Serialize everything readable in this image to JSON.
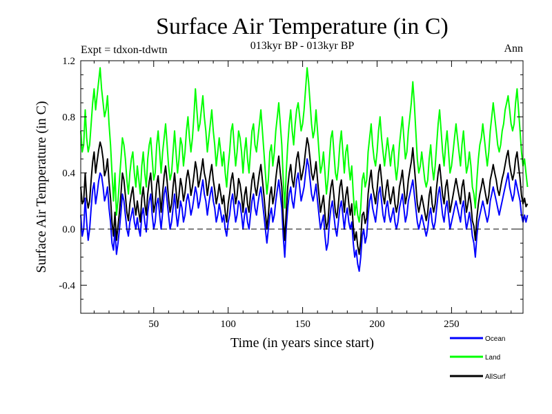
{
  "chart_data": {
    "type": "line",
    "title": "Surface Air Temperature (in C)",
    "subtitle": "013kyr BP - 013kyr BP",
    "experiment_label": "Expt = tdxon-tdwtn",
    "season_label": "Ann",
    "xlabel": "Time (in years since start)",
    "ylabel": "Surface Air Temperature (in C)",
    "xlim": [
      1,
      298
    ],
    "ylim": [
      -0.6,
      1.2
    ],
    "x_ticks": [
      50,
      100,
      150,
      200,
      250
    ],
    "y_ticks": [
      "-0.4",
      "0.0",
      "0.4",
      "0.8",
      "1.2"
    ],
    "y_tick_values": [
      -0.4,
      0.0,
      0.4,
      0.8,
      1.2
    ],
    "reference_line": 0.0,
    "legend_position": "bottom-right",
    "series": [
      {
        "name": "Ocean",
        "color": "#0000ff",
        "values": [
          0.1,
          -0.05,
          0.0,
          0.22,
          0.05,
          -0.08,
          0.0,
          0.15,
          0.28,
          0.33,
          0.18,
          0.25,
          0.34,
          0.4,
          0.38,
          0.3,
          0.2,
          0.24,
          0.3,
          0.15,
          0.05,
          -0.1,
          -0.15,
          0.0,
          -0.18,
          -0.1,
          0.0,
          0.12,
          0.25,
          0.2,
          0.1,
          0.0,
          -0.05,
          0.05,
          0.1,
          0.15,
          0.05,
          0.0,
          0.08,
          0.0,
          -0.05,
          0.1,
          0.15,
          0.05,
          -0.02,
          0.12,
          0.2,
          0.25,
          0.1,
          0.0,
          0.05,
          0.18,
          0.22,
          0.1,
          0.0,
          0.12,
          0.25,
          0.3,
          0.2,
          0.1,
          0.0,
          0.05,
          0.15,
          0.25,
          0.12,
          0.02,
          0.1,
          0.2,
          0.15,
          0.05,
          0.1,
          0.2,
          0.25,
          0.18,
          0.1,
          0.15,
          0.22,
          0.3,
          0.25,
          0.15,
          0.2,
          0.28,
          0.35,
          0.25,
          0.2,
          0.1,
          0.18,
          0.25,
          0.3,
          0.2,
          0.15,
          0.05,
          0.1,
          0.18,
          0.12,
          0.05,
          0.1,
          0.0,
          -0.05,
          0.05,
          0.1,
          0.2,
          0.25,
          0.15,
          0.05,
          0.1,
          0.2,
          0.18,
          0.1,
          0.0,
          0.1,
          0.15,
          0.05,
          0.0,
          0.1,
          0.2,
          0.25,
          0.15,
          0.1,
          0.18,
          0.25,
          0.3,
          0.2,
          0.1,
          0.0,
          -0.1,
          0.0,
          0.1,
          0.15,
          0.05,
          0.1,
          0.2,
          0.28,
          0.35,
          0.25,
          0.15,
          -0.05,
          -0.2,
          0.0,
          0.15,
          0.25,
          0.3,
          0.2,
          0.15,
          0.25,
          0.35,
          0.4,
          0.3,
          0.2,
          0.25,
          0.3,
          0.4,
          0.5,
          0.45,
          0.35,
          0.25,
          0.2,
          0.25,
          0.32,
          0.2,
          0.1,
          0.0,
          0.05,
          0.1,
          -0.05,
          -0.15,
          -0.1,
          0.05,
          0.15,
          0.2,
          0.1,
          0.0,
          -0.05,
          0.05,
          0.15,
          0.2,
          0.1,
          0.0,
          0.1,
          0.15,
          0.05,
          0.0,
          0.05,
          -0.1,
          -0.2,
          -0.15,
          -0.25,
          -0.3,
          -0.2,
          -0.05,
          0.0,
          -0.1,
          -0.05,
          0.1,
          0.2,
          0.25,
          0.15,
          0.1,
          0.05,
          0.15,
          0.25,
          0.3,
          0.2,
          0.1,
          0.05,
          0.15,
          0.2,
          0.1,
          0.05,
          0.1,
          0.15,
          0.05,
          0.0,
          0.05,
          0.15,
          0.2,
          0.25,
          0.15,
          0.05,
          0.1,
          0.2,
          0.25,
          0.3,
          0.35,
          0.25,
          0.15,
          0.05,
          0.0,
          0.05,
          0.1,
          0.05,
          0.0,
          -0.05,
          0.0,
          0.1,
          0.15,
          0.05,
          0.0,
          0.05,
          0.15,
          0.25,
          0.3,
          0.2,
          0.1,
          0.05,
          0.15,
          0.2,
          0.1,
          0.0,
          0.05,
          0.1,
          0.15,
          0.2,
          0.15,
          0.1,
          0.05,
          0.15,
          0.2,
          0.1,
          0.0,
          0.05,
          0.12,
          0.05,
          -0.05,
          -0.1,
          -0.2,
          -0.05,
          0.05,
          0.1,
          0.15,
          0.2,
          0.15,
          0.1,
          0.05,
          0.1,
          0.2,
          0.25,
          0.3,
          0.25,
          0.2,
          0.15,
          0.1,
          0.15,
          0.2,
          0.25,
          0.3,
          0.35,
          0.4,
          0.3,
          0.25,
          0.2,
          0.25,
          0.35,
          0.3,
          0.25,
          0.2,
          0.1,
          0.05,
          0.1,
          0.05,
          0.1
        ]
      },
      {
        "name": "Land",
        "color": "#00ff00",
        "values": [
          0.7,
          0.55,
          0.6,
          0.85,
          0.65,
          0.55,
          0.6,
          0.75,
          0.9,
          1.0,
          0.85,
          0.95,
          1.05,
          1.15,
          1.0,
          0.9,
          0.8,
          0.85,
          0.95,
          0.75,
          0.6,
          0.4,
          0.2,
          0.4,
          0.1,
          0.2,
          0.35,
          0.5,
          0.65,
          0.6,
          0.5,
          0.35,
          0.25,
          0.4,
          0.5,
          0.55,
          0.4,
          0.3,
          0.45,
          0.35,
          0.25,
          0.45,
          0.55,
          0.4,
          0.3,
          0.5,
          0.6,
          0.65,
          0.5,
          0.35,
          0.4,
          0.6,
          0.7,
          0.55,
          0.4,
          0.55,
          0.65,
          0.75,
          0.6,
          0.45,
          0.35,
          0.4,
          0.55,
          0.7,
          0.55,
          0.4,
          0.5,
          0.65,
          0.6,
          0.45,
          0.55,
          0.7,
          0.8,
          0.65,
          0.55,
          0.65,
          0.8,
          1.0,
          0.85,
          0.7,
          0.75,
          0.85,
          0.95,
          0.8,
          0.7,
          0.55,
          0.65,
          0.75,
          0.85,
          0.7,
          0.6,
          0.45,
          0.55,
          0.65,
          0.55,
          0.45,
          0.55,
          0.4,
          0.3,
          0.45,
          0.55,
          0.7,
          0.75,
          0.6,
          0.45,
          0.55,
          0.7,
          0.65,
          0.55,
          0.4,
          0.55,
          0.65,
          0.5,
          0.4,
          0.55,
          0.7,
          0.75,
          0.6,
          0.55,
          0.65,
          0.75,
          0.85,
          0.7,
          0.55,
          0.4,
          0.25,
          0.35,
          0.55,
          0.6,
          0.45,
          0.55,
          0.7,
          0.8,
          0.9,
          0.75,
          0.6,
          0.35,
          0.15,
          0.4,
          0.6,
          0.75,
          0.85,
          0.7,
          0.6,
          0.75,
          0.85,
          0.9,
          0.8,
          0.7,
          0.75,
          0.85,
          1.0,
          1.15,
          1.05,
          0.9,
          0.75,
          0.65,
          0.7,
          0.85,
          0.7,
          0.55,
          0.4,
          0.45,
          0.55,
          0.4,
          0.25,
          0.35,
          0.5,
          0.65,
          0.7,
          0.55,
          0.4,
          0.35,
          0.45,
          0.6,
          0.7,
          0.55,
          0.4,
          0.55,
          0.6,
          0.45,
          0.35,
          0.45,
          0.25,
          0.1,
          0.2,
          0.1,
          0.05,
          0.15,
          0.35,
          0.4,
          0.3,
          0.35,
          0.55,
          0.65,
          0.75,
          0.6,
          0.5,
          0.45,
          0.55,
          0.7,
          0.8,
          0.65,
          0.55,
          0.45,
          0.55,
          0.65,
          0.55,
          0.45,
          0.55,
          0.6,
          0.45,
          0.35,
          0.45,
          0.6,
          0.7,
          0.8,
          0.65,
          0.5,
          0.55,
          0.7,
          0.8,
          0.9,
          1.05,
          0.9,
          0.7,
          0.5,
          0.4,
          0.45,
          0.55,
          0.45,
          0.35,
          0.3,
          0.35,
          0.5,
          0.6,
          0.45,
          0.35,
          0.45,
          0.6,
          0.75,
          0.85,
          0.7,
          0.55,
          0.45,
          0.6,
          0.7,
          0.55,
          0.4,
          0.45,
          0.55,
          0.65,
          0.75,
          0.65,
          0.55,
          0.45,
          0.6,
          0.7,
          0.55,
          0.4,
          0.45,
          0.55,
          0.45,
          0.3,
          0.25,
          0.15,
          0.35,
          0.5,
          0.6,
          0.65,
          0.75,
          0.65,
          0.55,
          0.45,
          0.55,
          0.7,
          0.8,
          0.9,
          0.8,
          0.7,
          0.6,
          0.55,
          0.6,
          0.7,
          0.75,
          0.85,
          0.9,
          0.95,
          0.85,
          0.75,
          0.7,
          0.75,
          0.9,
          1.0,
          0.85,
          0.7,
          0.55,
          0.45,
          0.5,
          0.4,
          0.3
        ]
      },
      {
        "name": "AllSurf",
        "color": "#000000",
        "values": [
          0.3,
          0.18,
          0.2,
          0.4,
          0.22,
          0.15,
          0.2,
          0.35,
          0.48,
          0.55,
          0.4,
          0.48,
          0.56,
          0.62,
          0.58,
          0.5,
          0.38,
          0.42,
          0.5,
          0.34,
          0.22,
          0.05,
          -0.05,
          0.12,
          -0.08,
          0.02,
          0.12,
          0.25,
          0.4,
          0.35,
          0.24,
          0.12,
          0.06,
          0.18,
          0.25,
          0.3,
          0.18,
          0.1,
          0.2,
          0.12,
          0.05,
          0.22,
          0.3,
          0.18,
          0.1,
          0.25,
          0.34,
          0.4,
          0.25,
          0.12,
          0.18,
          0.32,
          0.38,
          0.25,
          0.12,
          0.26,
          0.38,
          0.45,
          0.34,
          0.22,
          0.12,
          0.18,
          0.3,
          0.4,
          0.28,
          0.15,
          0.24,
          0.36,
          0.3,
          0.2,
          0.26,
          0.36,
          0.42,
          0.35,
          0.24,
          0.3,
          0.38,
          0.48,
          0.42,
          0.3,
          0.35,
          0.42,
          0.5,
          0.4,
          0.35,
          0.24,
          0.32,
          0.4,
          0.46,
          0.35,
          0.28,
          0.18,
          0.24,
          0.32,
          0.25,
          0.18,
          0.24,
          0.12,
          0.05,
          0.18,
          0.25,
          0.35,
          0.4,
          0.3,
          0.18,
          0.24,
          0.36,
          0.32,
          0.24,
          0.12,
          0.24,
          0.3,
          0.18,
          0.12,
          0.24,
          0.35,
          0.4,
          0.3,
          0.24,
          0.32,
          0.4,
          0.46,
          0.35,
          0.24,
          0.12,
          0.0,
          0.1,
          0.24,
          0.3,
          0.18,
          0.24,
          0.36,
          0.45,
          0.52,
          0.4,
          0.3,
          0.08,
          -0.08,
          0.12,
          0.3,
          0.4,
          0.46,
          0.35,
          0.3,
          0.4,
          0.5,
          0.55,
          0.45,
          0.35,
          0.4,
          0.46,
          0.56,
          0.65,
          0.6,
          0.5,
          0.4,
          0.35,
          0.4,
          0.48,
          0.35,
          0.24,
          0.12,
          0.18,
          0.24,
          0.1,
          0.0,
          0.05,
          0.2,
          0.3,
          0.35,
          0.24,
          0.12,
          0.08,
          0.18,
          0.3,
          0.35,
          0.24,
          0.12,
          0.24,
          0.3,
          0.18,
          0.1,
          0.18,
          0.02,
          -0.08,
          -0.02,
          -0.12,
          -0.18,
          -0.08,
          0.1,
          0.12,
          0.04,
          0.08,
          0.25,
          0.35,
          0.42,
          0.3,
          0.24,
          0.18,
          0.28,
          0.4,
          0.46,
          0.35,
          0.24,
          0.18,
          0.28,
          0.35,
          0.25,
          0.18,
          0.24,
          0.3,
          0.18,
          0.12,
          0.18,
          0.3,
          0.35,
          0.42,
          0.3,
          0.18,
          0.24,
          0.35,
          0.42,
          0.48,
          0.58,
          0.45,
          0.32,
          0.18,
          0.12,
          0.18,
          0.24,
          0.18,
          0.12,
          0.06,
          0.12,
          0.24,
          0.3,
          0.18,
          0.12,
          0.18,
          0.3,
          0.4,
          0.46,
          0.35,
          0.24,
          0.18,
          0.3,
          0.35,
          0.24,
          0.12,
          0.18,
          0.24,
          0.3,
          0.36,
          0.3,
          0.24,
          0.18,
          0.3,
          0.35,
          0.24,
          0.12,
          0.18,
          0.26,
          0.18,
          0.06,
          0.02,
          -0.08,
          0.08,
          0.18,
          0.25,
          0.3,
          0.36,
          0.3,
          0.24,
          0.18,
          0.24,
          0.35,
          0.4,
          0.46,
          0.4,
          0.35,
          0.28,
          0.24,
          0.3,
          0.36,
          0.4,
          0.46,
          0.52,
          0.56,
          0.46,
          0.4,
          0.35,
          0.4,
          0.5,
          0.55,
          0.45,
          0.36,
          0.24,
          0.18,
          0.22,
          0.16,
          0.18
        ]
      }
    ]
  }
}
